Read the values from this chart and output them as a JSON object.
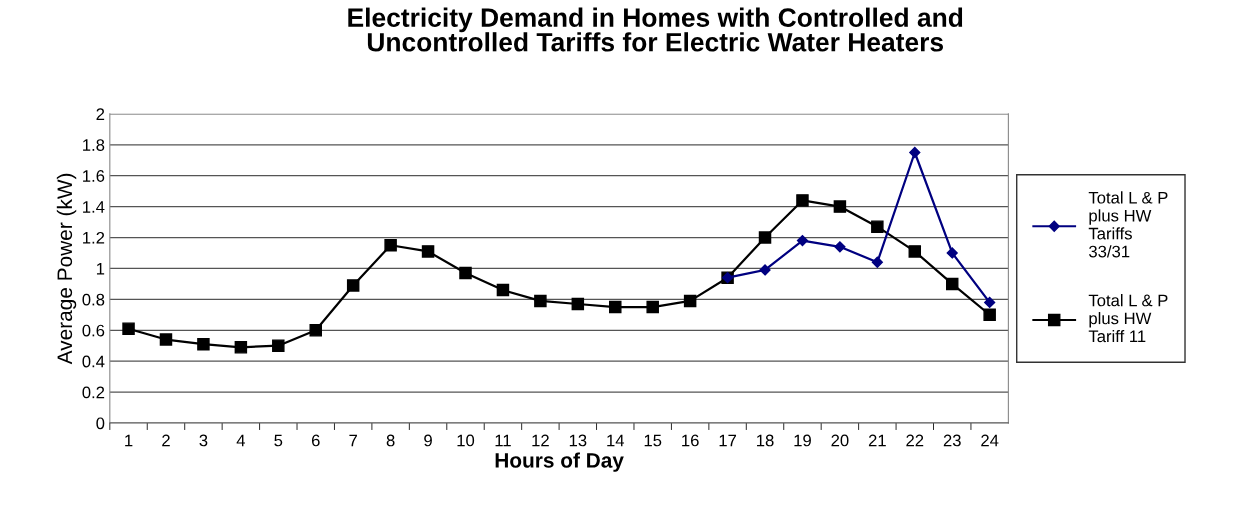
{
  "chart_data": {
    "type": "line",
    "title": "Electricity Demand in Homes with Controlled and Uncontrolled Tariffs for Electric Water Heaters",
    "xlabel": "Hours of Day",
    "ylabel": "Average Power (kW)",
    "categories": [
      "1",
      "2",
      "3",
      "4",
      "5",
      "6",
      "7",
      "8",
      "9",
      "10",
      "11",
      "12",
      "13",
      "14",
      "15",
      "16",
      "17",
      "18",
      "19",
      "20",
      "21",
      "22",
      "23",
      "24"
    ],
    "series": [
      {
        "name": "Total L & P plus HW Tariffs 33/31",
        "color": "#000080",
        "marker": "diamond",
        "values": [
          null,
          null,
          null,
          null,
          null,
          null,
          null,
          null,
          null,
          null,
          null,
          null,
          null,
          null,
          null,
          null,
          0.94,
          0.99,
          1.18,
          1.14,
          1.04,
          1.75,
          1.1,
          0.78
        ]
      },
      {
        "name": "Total L & P plus HW Tariff 11",
        "color": "#000000",
        "marker": "square",
        "values": [
          0.61,
          0.54,
          0.51,
          0.49,
          0.5,
          0.6,
          0.89,
          1.15,
          1.11,
          0.97,
          0.86,
          0.79,
          0.77,
          0.75,
          0.75,
          0.79,
          0.94,
          1.2,
          1.44,
          1.4,
          1.27,
          1.11,
          0.9,
          0.7
        ]
      }
    ],
    "ylim": [
      0,
      2
    ],
    "yticks": [
      0,
      0.2,
      0.4,
      0.6,
      0.8,
      1,
      1.2,
      1.4,
      1.6,
      1.8,
      2
    ],
    "grid": "y",
    "legend": "right",
    "line_style": "solid"
  }
}
